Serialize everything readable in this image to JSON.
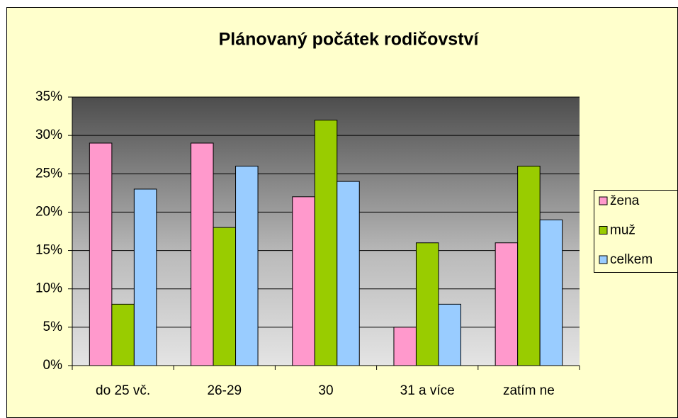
{
  "chart_data": {
    "type": "bar",
    "title": "Plánovaný počátek rodičovství",
    "categories": [
      "do 25 vč.",
      "26-29",
      "30",
      "31 a více",
      "zatím ne"
    ],
    "series": [
      {
        "name": "žena",
        "color": "#FF99CC",
        "values": [
          29,
          29,
          22,
          5,
          16
        ]
      },
      {
        "name": "muž",
        "color": "#99CC00",
        "values": [
          8,
          18,
          32,
          16,
          26
        ]
      },
      {
        "name": "celkem",
        "color": "#99CCFF",
        "values": [
          23,
          26,
          24,
          8,
          19
        ]
      }
    ],
    "ylim": [
      0,
      35
    ],
    "yticks": [
      {
        "value": 0,
        "label": "0%"
      },
      {
        "value": 5,
        "label": "5%"
      },
      {
        "value": 10,
        "label": "10%"
      },
      {
        "value": 15,
        "label": "15%"
      },
      {
        "value": 20,
        "label": "20%"
      },
      {
        "value": 25,
        "label": "25%"
      },
      {
        "value": 30,
        "label": "30%"
      },
      {
        "value": 35,
        "label": "35%"
      }
    ],
    "grid": true,
    "legend": "right"
  }
}
